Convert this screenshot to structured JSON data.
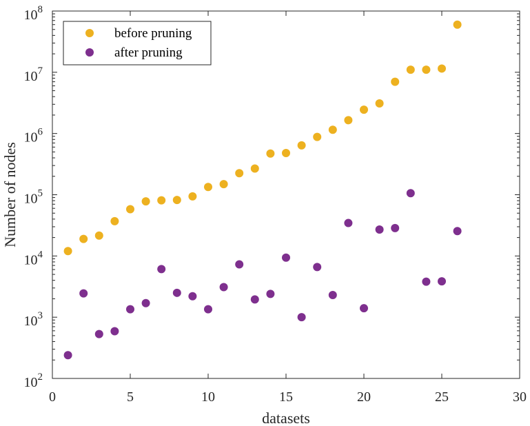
{
  "chart_data": {
    "type": "scatter",
    "xlabel": "datasets",
    "ylabel": "Number of nodes",
    "xlim": [
      0,
      30
    ],
    "ylim": [
      100,
      100000000
    ],
    "yscale": "log",
    "grid": false,
    "legend_position": "top-left",
    "x_ticks": [
      "0",
      "5",
      "10",
      "15",
      "20",
      "25",
      "30"
    ],
    "y_ticks": [
      {
        "base": "10",
        "exp": "2"
      },
      {
        "base": "10",
        "exp": "3"
      },
      {
        "base": "10",
        "exp": "4"
      },
      {
        "base": "10",
        "exp": "5"
      },
      {
        "base": "10",
        "exp": "6"
      },
      {
        "base": "10",
        "exp": "7"
      },
      {
        "base": "10",
        "exp": "8"
      }
    ],
    "series": [
      {
        "name": "before pruning",
        "color": "#EDB120",
        "x": [
          1,
          2,
          3,
          4,
          5,
          6,
          7,
          8,
          9,
          10,
          11,
          12,
          13,
          14,
          15,
          16,
          17,
          18,
          19,
          20,
          21,
          22,
          23,
          24,
          25,
          26
        ],
        "y": [
          12000,
          19000,
          21500,
          37000,
          58000,
          78000,
          81000,
          82000,
          94000,
          134000,
          149000,
          225000,
          268000,
          470000,
          480000,
          640000,
          880000,
          1150000,
          1650000,
          2450000,
          3100000,
          7000000,
          11000000,
          11000000,
          11500000,
          60000000
        ]
      },
      {
        "name": "after pruning",
        "color": "#7E2F8E",
        "x": [
          1,
          2,
          3,
          4,
          5,
          6,
          7,
          8,
          9,
          10,
          11,
          12,
          13,
          14,
          15,
          16,
          17,
          18,
          19,
          20,
          21,
          22,
          23,
          24,
          25,
          26
        ],
        "y": [
          240,
          2450,
          530,
          590,
          1350,
          1700,
          6100,
          2500,
          2200,
          1350,
          3100,
          7300,
          1950,
          2400,
          9400,
          1000,
          6600,
          2300,
          34500,
          1400,
          27000,
          28500,
          106000,
          3800,
          3850,
          25500
        ]
      }
    ]
  }
}
